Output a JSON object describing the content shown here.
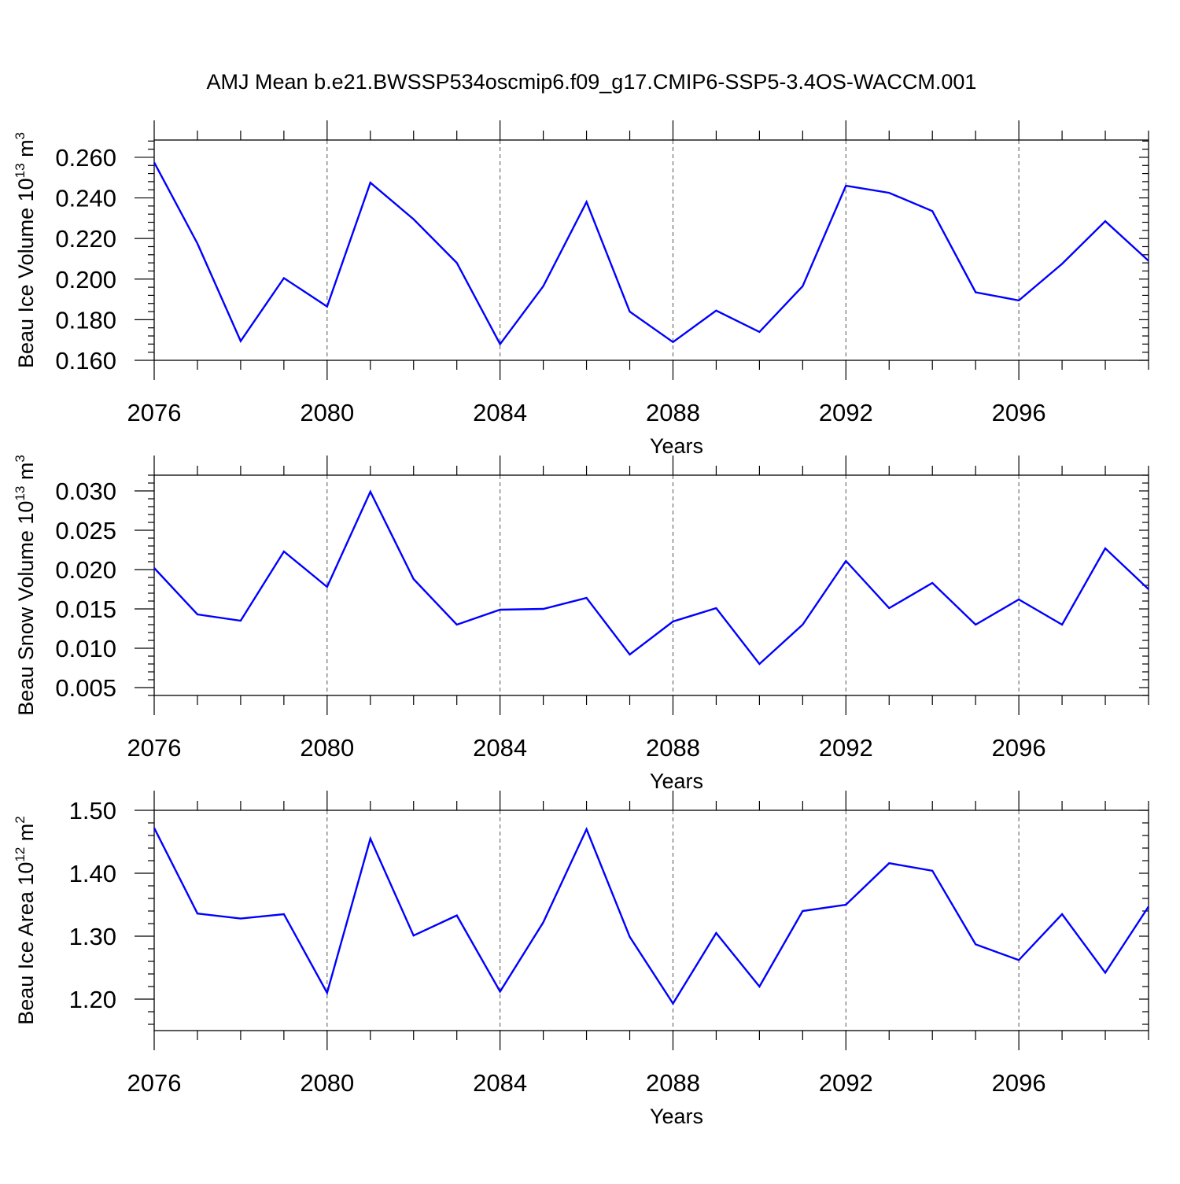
{
  "chart_data": {
    "title": "AMJ Mean b.e21.BWSSP534oscmip6.f09_g17.CMIP6-SSP5-3.4OS-WACCM.001",
    "panels": [
      {
        "type": "line",
        "ylabel_base": "Beau Ice Volume 10",
        "ylabel_exp": "13",
        "ylabel_unit": "m",
        "ylabel_unit_exp": "3",
        "xlabel": "Years",
        "xlim": [
          2076,
          2099
        ],
        "ylim": [
          0.16,
          0.2685
        ],
        "xticks": [
          "2076",
          "2080",
          "2084",
          "2088",
          "2092",
          "2096"
        ],
        "yticks": [
          "0.160",
          "0.180",
          "0.200",
          "0.220",
          "0.240",
          "0.260"
        ],
        "grid": "vertical dashed at major x ticks",
        "series": [
          {
            "name": "Beau Ice Volume",
            "color": "#0000ff",
            "x": [
              2076,
              2077,
              2078,
              2079,
              2080,
              2081,
              2082,
              2083,
              2084,
              2085,
              2086,
              2087,
              2088,
              2089,
              2090,
              2091,
              2092,
              2093,
              2094,
              2095,
              2096,
              2097,
              2098,
              2099
            ],
            "values": [
              0.2575,
              0.2175,
              0.1695,
              0.2005,
              0.1865,
              0.2475,
              0.2295,
              0.208,
              0.168,
              0.1965,
              0.238,
              0.184,
              0.169,
              0.1845,
              0.174,
              0.1965,
              0.246,
              0.2425,
              0.2335,
              0.1935,
              0.1895,
              0.2075,
              0.2285,
              0.209
            ]
          }
        ]
      },
      {
        "type": "line",
        "ylabel_base": "Beau Snow Volume 10",
        "ylabel_exp": "13",
        "ylabel_unit": "m",
        "ylabel_unit_exp": "3",
        "xlabel": "Years",
        "xlim": [
          2076,
          2099
        ],
        "ylim": [
          0.004,
          0.032
        ],
        "xticks": [
          "2076",
          "2080",
          "2084",
          "2088",
          "2092",
          "2096"
        ],
        "yticks": [
          "0.005",
          "0.010",
          "0.015",
          "0.020",
          "0.025",
          "0.030"
        ],
        "grid": "vertical dashed at major x ticks",
        "series": [
          {
            "name": "Beau Snow Volume",
            "color": "#0000ff",
            "x": [
              2076,
              2077,
              2078,
              2079,
              2080,
              2081,
              2082,
              2083,
              2084,
              2085,
              2086,
              2087,
              2088,
              2089,
              2090,
              2091,
              2092,
              2093,
              2094,
              2095,
              2096,
              2097,
              2098,
              2099
            ],
            "values": [
              0.0202,
              0.0143,
              0.0135,
              0.0223,
              0.0178,
              0.0299,
              0.0188,
              0.013,
              0.0149,
              0.015,
              0.0164,
              0.0092,
              0.0134,
              0.0151,
              0.008,
              0.013,
              0.0211,
              0.0151,
              0.0183,
              0.013,
              0.0162,
              0.013,
              0.0227,
              0.0175
            ]
          }
        ]
      },
      {
        "type": "line",
        "ylabel_base": "Beau Ice Area 10",
        "ylabel_exp": "12",
        "ylabel_unit": "m",
        "ylabel_unit_exp": "2",
        "xlabel": "Years",
        "xlim": [
          2076,
          2099
        ],
        "ylim": [
          1.15,
          1.5
        ],
        "xticks": [
          "2076",
          "2080",
          "2084",
          "2088",
          "2092",
          "2096"
        ],
        "yticks": [
          "1.20",
          "1.30",
          "1.40",
          "1.50"
        ],
        "grid": "vertical dashed at major x ticks",
        "series": [
          {
            "name": "Beau Ice Area",
            "color": "#0000ff",
            "x": [
              2076,
              2077,
              2078,
              2079,
              2080,
              2081,
              2082,
              2083,
              2084,
              2085,
              2086,
              2087,
              2088,
              2089,
              2090,
              2091,
              2092,
              2093,
              2094,
              2095,
              2096,
              2097,
              2098,
              2099
            ],
            "values": [
              1.472,
              1.336,
              1.328,
              1.335,
              1.21,
              1.455,
              1.301,
              1.333,
              1.212,
              1.322,
              1.47,
              1.299,
              1.193,
              1.305,
              1.22,
              1.34,
              1.35,
              1.416,
              1.404,
              1.287,
              1.262,
              1.335,
              1.242,
              1.347
            ]
          }
        ]
      }
    ]
  }
}
